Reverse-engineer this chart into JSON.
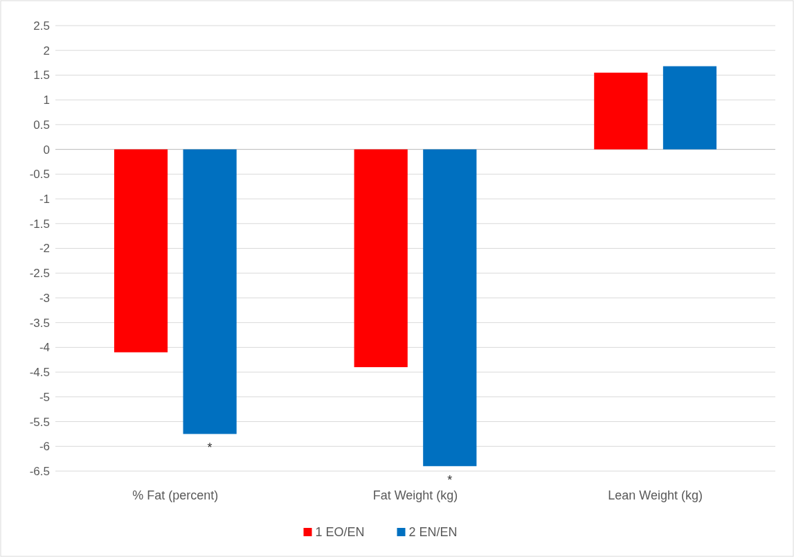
{
  "chart_data": {
    "type": "bar",
    "categories": [
      "% Fat (percent)",
      "Fat Weight (kg)",
      "Lean Weight (kg)"
    ],
    "series": [
      {
        "name": "1 EO/EN",
        "color": "#ff0000",
        "values": [
          -4.1,
          -4.4,
          1.55
        ]
      },
      {
        "name": "2 EN/EN",
        "color": "#0070c0",
        "values": [
          -5.75,
          -6.4,
          1.68
        ]
      }
    ],
    "ylim": [
      -6.5,
      2.5
    ],
    "yticks": [
      2.5,
      2,
      1.5,
      1,
      0.5,
      0,
      -0.5,
      -1,
      -1.5,
      -2,
      -2.5,
      -3,
      -3.5,
      -4,
      -4.5,
      -5,
      -5.5,
      -6,
      -6.5
    ],
    "grid": "y",
    "legend": "bottom",
    "annotations": [
      "*",
      "*"
    ]
  }
}
